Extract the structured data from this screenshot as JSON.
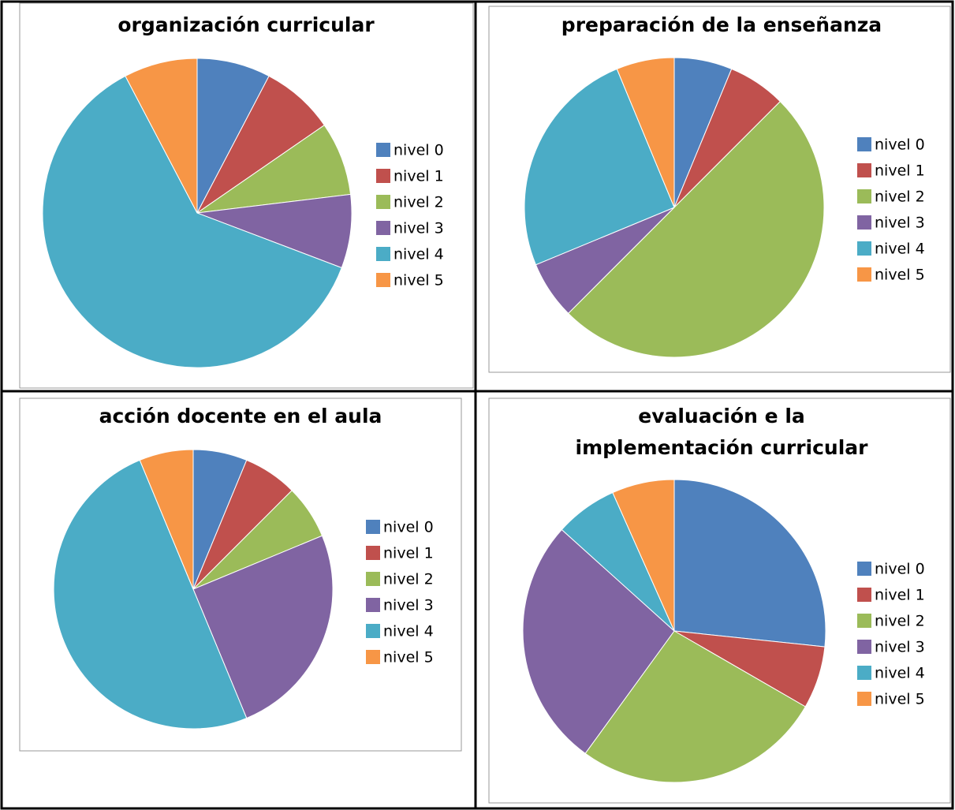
{
  "chart_data": [
    {
      "type": "pie",
      "title": "organización curricular",
      "legend": "right",
      "categories": [
        "nivel 0",
        "nivel 1",
        "nivel 2",
        "nivel 3",
        "nivel 4",
        "nivel 5"
      ],
      "values": [
        1,
        1,
        1,
        1,
        8,
        1
      ],
      "colors": [
        "#4f81bd",
        "#c0504d",
        "#9bbb59",
        "#8064a2",
        "#4bacc6",
        "#f79646"
      ]
    },
    {
      "type": "pie",
      "title": "preparación de la enseñanza",
      "legend": "right",
      "categories": [
        "nivel 0",
        "nivel 1",
        "nivel 2",
        "nivel 3",
        "nivel 4",
        "nivel 5"
      ],
      "values": [
        1,
        1,
        8,
        1,
        4,
        1
      ],
      "colors": [
        "#4f81bd",
        "#c0504d",
        "#9bbb59",
        "#8064a2",
        "#4bacc6",
        "#f79646"
      ]
    },
    {
      "type": "pie",
      "title": "acción docente en el aula",
      "legend": "right",
      "categories": [
        "nivel 0",
        "nivel 1",
        "nivel 2",
        "nivel 3",
        "nivel 4",
        "nivel 5"
      ],
      "values": [
        1,
        1,
        1,
        4,
        8,
        1
      ],
      "colors": [
        "#4f81bd",
        "#c0504d",
        "#9bbb59",
        "#8064a2",
        "#4bacc6",
        "#f79646"
      ]
    },
    {
      "type": "pie",
      "title": "evaluación e la implementación curricular",
      "legend": "right",
      "categories": [
        "nivel 0",
        "nivel 1",
        "nivel 2",
        "nivel 3",
        "nivel 4",
        "nivel 5"
      ],
      "values": [
        4,
        1,
        4,
        4,
        1,
        1
      ],
      "colors": [
        "#4f81bd",
        "#c0504d",
        "#9bbb59",
        "#8064a2",
        "#4bacc6",
        "#f79646"
      ]
    }
  ]
}
